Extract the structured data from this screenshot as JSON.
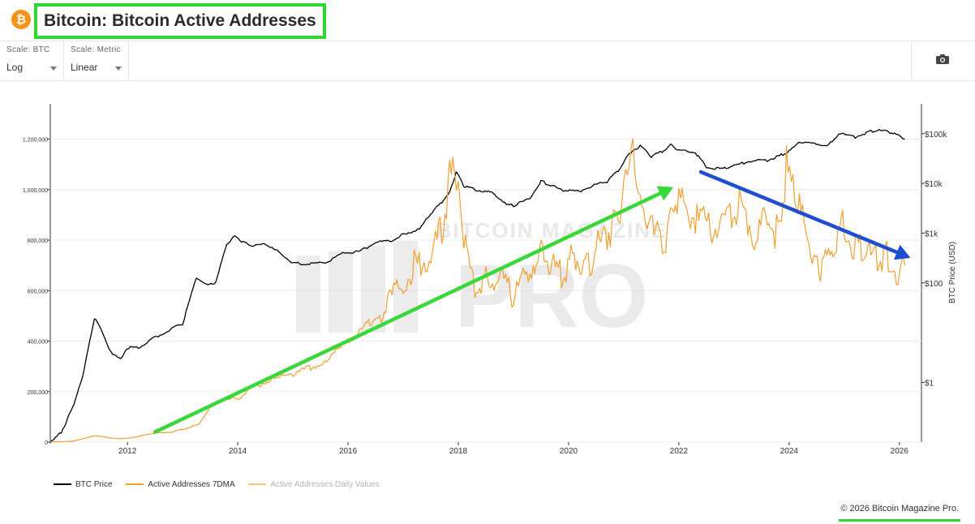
{
  "header": {
    "logo_symbol": "₿",
    "title": "Bitcoin: Bitcoin Active Addresses",
    "highlight_color": "#2ed82e"
  },
  "controls": {
    "scale_btc": {
      "label": "Scale: BTC",
      "value": "Log"
    },
    "scale_metric": {
      "label": "Scale: Metric",
      "value": "Linear"
    },
    "screenshot_icon": "camera-icon"
  },
  "chart_data": {
    "type": "line",
    "title": "Bitcoin: Bitcoin Active Addresses",
    "watermark": "BITCOIN MAGAZINE PRO",
    "x_ticks": [
      "2012",
      "2014",
      "2016",
      "2018",
      "2020",
      "2022",
      "2024",
      "2026"
    ],
    "x_range": [
      2010.6,
      2026.4
    ],
    "y_left": {
      "label": "",
      "ticks": [
        "0",
        "200,000",
        "400,000",
        "600,000",
        "800,000",
        "1,000,000",
        "1,200,000"
      ],
      "range": [
        0,
        1340000
      ]
    },
    "y_right": {
      "label": "BTC Price (USD)",
      "scale": "log",
      "ticks": [
        "$1",
        "$100",
        "$1k",
        "$10k",
        "$100k"
      ],
      "range_log10": [
        -1.2,
        5.6
      ]
    },
    "series": [
      {
        "name": "BTC Price",
        "axis": "right",
        "color": "#000000",
        "x": [
          2010.6,
          2010.8,
          2011.0,
          2011.2,
          2011.4,
          2011.55,
          2011.7,
          2011.9,
          2012.0,
          2012.2,
          2012.5,
          2012.8,
          2013.0,
          2013.25,
          2013.45,
          2013.6,
          2013.8,
          2013.95,
          2014.1,
          2014.3,
          2014.5,
          2014.8,
          2015.0,
          2015.3,
          2015.6,
          2015.9,
          2016.2,
          2016.5,
          2016.8,
          2017.0,
          2017.3,
          2017.5,
          2017.7,
          2017.85,
          2017.96,
          2018.1,
          2018.3,
          2018.6,
          2018.9,
          2019.0,
          2019.3,
          2019.5,
          2019.7,
          2019.9,
          2020.2,
          2020.5,
          2020.7,
          2020.9,
          2021.1,
          2021.3,
          2021.5,
          2021.7,
          2021.85,
          2022.0,
          2022.3,
          2022.5,
          2022.8,
          2023.0,
          2023.3,
          2023.6,
          2023.8,
          2024.0,
          2024.2,
          2024.5,
          2024.7,
          2024.9,
          2025.0,
          2025.2,
          2025.4,
          2025.6,
          2025.8,
          2026.0,
          2026.1
        ],
        "values": [
          0.06,
          0.1,
          0.3,
          1.5,
          20,
          10,
          4,
          3,
          5,
          5,
          8,
          12,
          15,
          130,
          90,
          100,
          600,
          900,
          650,
          550,
          600,
          380,
          250,
          240,
          260,
          400,
          420,
          650,
          700,
          950,
          1200,
          2500,
          4200,
          7000,
          17000,
          9000,
          7500,
          6500,
          3800,
          3600,
          5000,
          11000,
          9000,
          7200,
          7000,
          9500,
          11000,
          18000,
          40000,
          58000,
          35000,
          44000,
          60000,
          47000,
          42000,
          21000,
          19500,
          23000,
          28000,
          29000,
          35000,
          44000,
          67000,
          62000,
          58000,
          95000,
          102000,
          85000,
          105000,
          118000,
          110000,
          90000,
          78000
        ]
      },
      {
        "name": "Active Addresses 7DMA",
        "axis": "left",
        "color": "#f0a030",
        "x": [
          2010.6,
          2011.0,
          2011.4,
          2011.8,
          2012.0,
          2012.5,
          2012.8,
          2013.0,
          2013.3,
          2013.5,
          2013.8,
          2014.0,
          2014.3,
          2014.8,
          2015.0,
          2015.5,
          2015.9,
          2016.2,
          2016.6,
          2017.0,
          2017.2,
          2017.5,
          2017.7,
          2017.9,
          2018.0,
          2018.1,
          2018.3,
          2018.5,
          2018.8,
          2019.0,
          2019.3,
          2019.5,
          2019.7,
          2019.9,
          2020.1,
          2020.3,
          2020.5,
          2020.7,
          2020.9,
          2021.0,
          2021.1,
          2021.2,
          2021.3,
          2021.45,
          2021.55,
          2021.7,
          2021.85,
          2022.0,
          2022.3,
          2022.6,
          2022.9,
          2023.1,
          2023.4,
          2023.6,
          2023.8,
          2023.95,
          2024.1,
          2024.3,
          2024.45,
          2024.6,
          2024.8,
          2025.0,
          2025.2,
          2025.4,
          2025.6,
          2025.8,
          2026.0,
          2026.1
        ],
        "values": [
          1000,
          3000,
          25000,
          14000,
          15000,
          35000,
          40000,
          50000,
          70000,
          140000,
          175000,
          170000,
          220000,
          260000,
          270000,
          310000,
          380000,
          430000,
          520000,
          640000,
          700000,
          730000,
          840000,
          1100000,
          1000000,
          780000,
          600000,
          640000,
          650000,
          570000,
          700000,
          760000,
          700000,
          660000,
          760000,
          680000,
          760000,
          830000,
          900000,
          1000000,
          1080000,
          1140000,
          1020000,
          860000,
          860000,
          750000,
          920000,
          960000,
          880000,
          850000,
          900000,
          920000,
          820000,
          900000,
          820000,
          1080000,
          960000,
          850000,
          700000,
          690000,
          760000,
          860000,
          780000,
          740000,
          730000,
          730000,
          640000,
          700000
        ]
      },
      {
        "name": "Active Addresses Daily Values",
        "axis": "left",
        "color": "#f7c97a",
        "x": [],
        "values": []
      }
    ],
    "annotations": [
      {
        "type": "arrow",
        "color": "#3ad73a",
        "from": {
          "x": 2012.5,
          "y": 40000
        },
        "to": {
          "x": 2021.9,
          "y": 1010000
        }
      },
      {
        "type": "arrow",
        "color": "#1f4fd1",
        "from": {
          "x": 2022.4,
          "y": 1070000
        },
        "to": {
          "x": 2026.2,
          "y": 730000
        }
      }
    ]
  },
  "legend": [
    {
      "label": "BTC Price",
      "color": "#000000"
    },
    {
      "label": "Active Addresses 7DMA",
      "color": "#f0a030"
    },
    {
      "label": "Active Addresses Daily Values",
      "color": "#f7c97a"
    }
  ],
  "footer": {
    "copyright": "© 2026 Bitcoin Magazine Pro."
  }
}
